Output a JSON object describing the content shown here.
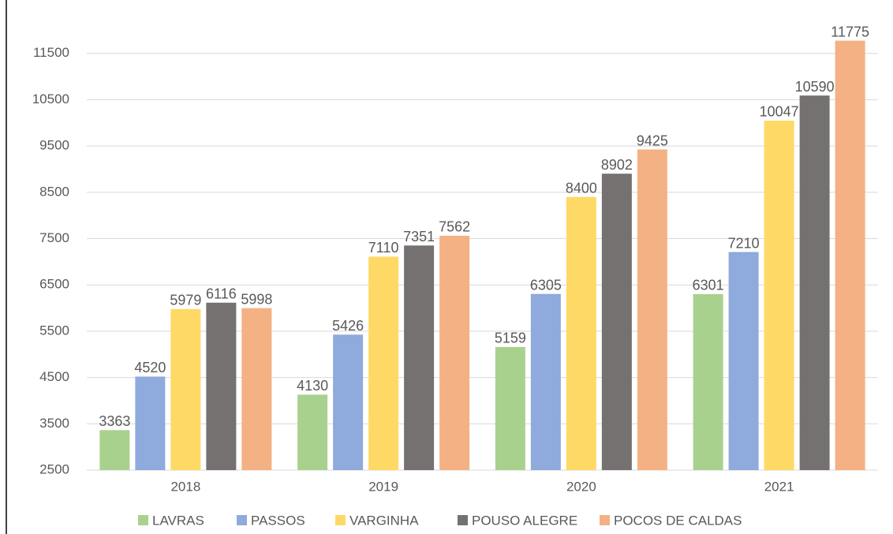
{
  "chart_data": {
    "type": "bar",
    "categories": [
      "2018",
      "2019",
      "2020",
      "2021"
    ],
    "series": [
      {
        "name": "LAVRAS",
        "color": "#a9d18e",
        "values": [
          3363,
          4130,
          5159,
          6301
        ]
      },
      {
        "name": "PASSOS",
        "color": "#8faadc",
        "values": [
          4520,
          5426,
          6305,
          7210
        ]
      },
      {
        "name": "VARGINHA",
        "color": "#ffd966",
        "values": [
          5979,
          7110,
          8400,
          10047
        ]
      },
      {
        "name": "POUSO ALEGRE",
        "color": "#767171",
        "values": [
          6116,
          7351,
          8902,
          10590
        ]
      },
      {
        "name": "POCOS DE CALDAS",
        "color": "#f4b183",
        "values": [
          5998,
          7562,
          9425,
          11775
        ]
      }
    ],
    "ylim": [
      2500,
      12500
    ],
    "yticks": [
      2500,
      3500,
      4500,
      5500,
      6500,
      7500,
      8500,
      9500,
      10500,
      11500
    ],
    "grid": true,
    "legend": "bottom"
  }
}
